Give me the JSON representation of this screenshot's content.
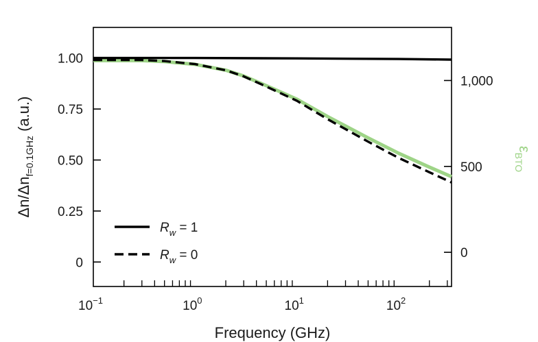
{
  "chart_data": {
    "type": "line",
    "x_scale": "log",
    "xlim": [
      0.1,
      330
    ],
    "xlabel": "Frequency (GHz)",
    "x_ticks": [
      {
        "value": 0.1,
        "base": "10",
        "exp": "−1"
      },
      {
        "value": 1,
        "base": "10",
        "exp": "0"
      },
      {
        "value": 10,
        "base": "10",
        "exp": "1"
      },
      {
        "value": 100,
        "base": "10",
        "exp": "2"
      }
    ],
    "ylabel_left": {
      "main": "Δn/Δn",
      "sub": "f=0.1GHz",
      "unit": " (a.u.)"
    },
    "ylim_left": [
      -0.12,
      1.15
    ],
    "y_ticks_left": [
      {
        "value": 1.0,
        "label": "1.00"
      },
      {
        "value": 0.75,
        "label": "0.75"
      },
      {
        "value": 0.5,
        "label": "0.50"
      },
      {
        "value": 0.25,
        "label": "0.25"
      },
      {
        "value": 0.0,
        "label": "0"
      }
    ],
    "ylabel_right": {
      "main": "ε",
      "sub": "BTO"
    },
    "ylim_right": [
      -199,
      1309
    ],
    "y_ticks_right": [
      {
        "value": 1000,
        "label": "1,000"
      },
      {
        "value": 500,
        "label": "500"
      },
      {
        "value": 0,
        "label": "0"
      }
    ],
    "series": [
      {
        "name": "R_w = 1",
        "legend": {
          "symbol": "R",
          "sub": "w",
          "rest": " = 1"
        },
        "axis": "left",
        "style": "solid",
        "color": "#000000",
        "x": [
          0.1,
          1,
          10,
          100,
          330
        ],
        "y": [
          1.0,
          1.0,
          0.998,
          0.995,
          0.992
        ]
      },
      {
        "name": "R_w = 0",
        "legend": {
          "symbol": "R",
          "sub": "w",
          "rest": " = 0"
        },
        "axis": "left",
        "style": "dashed",
        "color": "#000000",
        "x": [
          0.1,
          0.3,
          0.5,
          1,
          2,
          3,
          5,
          10,
          20,
          50,
          100,
          200,
          330
        ],
        "y": [
          0.99,
          0.99,
          0.985,
          0.97,
          0.94,
          0.91,
          0.86,
          0.79,
          0.7,
          0.59,
          0.51,
          0.44,
          0.39
        ]
      },
      {
        "name": "ε_BTO",
        "axis": "right",
        "style": "solid",
        "color": "#9ed487",
        "x": [
          0.1,
          0.3,
          0.5,
          1,
          2,
          3,
          5,
          10,
          20,
          50,
          100,
          200,
          330
        ],
        "y": [
          1116,
          1116,
          1110,
          1094,
          1060,
          1026,
          970,
          891,
          790,
          666,
          576,
          496,
          440
        ]
      }
    ],
    "legend_position": "bottom-left",
    "grid": false,
    "colors": {
      "axis": "#000000",
      "eps_axis_label": "#9ed487"
    }
  }
}
